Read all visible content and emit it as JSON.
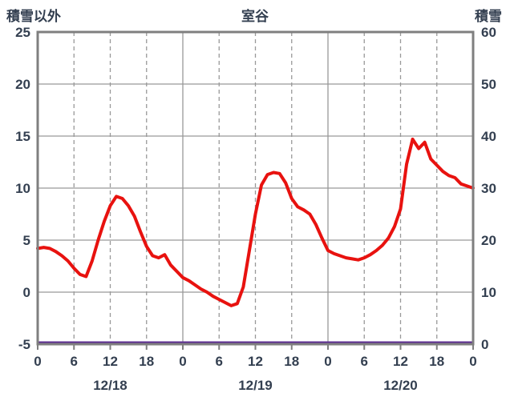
{
  "header": {
    "left_axis_title": "積雪以外",
    "station_title": "室谷",
    "right_axis_title": "積雪"
  },
  "chart_data": {
    "type": "line",
    "title": "室谷",
    "x_unit": "hour",
    "x_min_hour": 0,
    "x_max_hour": 72,
    "series": [
      {
        "name": "積雪以外",
        "axis": "left",
        "color": "#e8120f",
        "line_width": 4,
        "values": [
          4.2,
          4.3,
          4.2,
          3.9,
          3.5,
          3.0,
          2.3,
          1.7,
          1.5,
          3.0,
          5.0,
          6.8,
          8.3,
          9.2,
          9.0,
          8.3,
          7.3,
          5.8,
          4.4,
          3.5,
          3.3,
          3.6,
          2.6,
          2.0,
          1.4,
          1.1,
          0.7,
          0.3,
          0.0,
          -0.4,
          -0.7,
          -1.0,
          -1.3,
          -1.1,
          0.5,
          4.0,
          7.5,
          10.3,
          11.3,
          11.5,
          11.4,
          10.5,
          9.0,
          8.2,
          7.9,
          7.5,
          6.5,
          5.2,
          4.0,
          3.7,
          3.5,
          3.3,
          3.2,
          3.1,
          3.3,
          3.6,
          4.0,
          4.5,
          5.2,
          6.3,
          8.0,
          12.3,
          14.7,
          13.8,
          14.4,
          12.8,
          12.2,
          11.6,
          11.2,
          11.0,
          10.4,
          10.2,
          10.0
        ]
      },
      {
        "name": "積雪",
        "axis": "right",
        "color": "#5c2d91",
        "line_width": 3,
        "constant": 0,
        "count": 73
      }
    ],
    "axes": {
      "left": {
        "title": "積雪以外",
        "min": -5,
        "max": 25,
        "ticks": [
          25,
          20,
          15,
          10,
          5,
          0,
          -5
        ]
      },
      "right": {
        "title": "積雪",
        "min": 0,
        "max": 60,
        "ticks": [
          60,
          50,
          40,
          30,
          20,
          10,
          0
        ]
      },
      "x": {
        "tick_hours": [
          0,
          6,
          12,
          18,
          24,
          30,
          36,
          42,
          48,
          54,
          60,
          66,
          72
        ],
        "tick_labels": [
          "0",
          "6",
          "12",
          "18",
          "0",
          "6",
          "12",
          "18",
          "0",
          "6",
          "12",
          "18",
          "0"
        ],
        "solid_gridline_hours": [
          24,
          48
        ],
        "dashed_gridline_hours": [
          6,
          12,
          18,
          30,
          36,
          42,
          54,
          60,
          66
        ],
        "date_labels": [
          {
            "label": "12/18",
            "hour": 12
          },
          {
            "label": "12/19",
            "hour": 36
          },
          {
            "label": "12/20",
            "hour": 60
          }
        ]
      }
    },
    "style": {
      "background": "#ffffff",
      "grid_color": "#999999",
      "border_color": "#7f7f7f",
      "text_color": "#333f50"
    }
  }
}
